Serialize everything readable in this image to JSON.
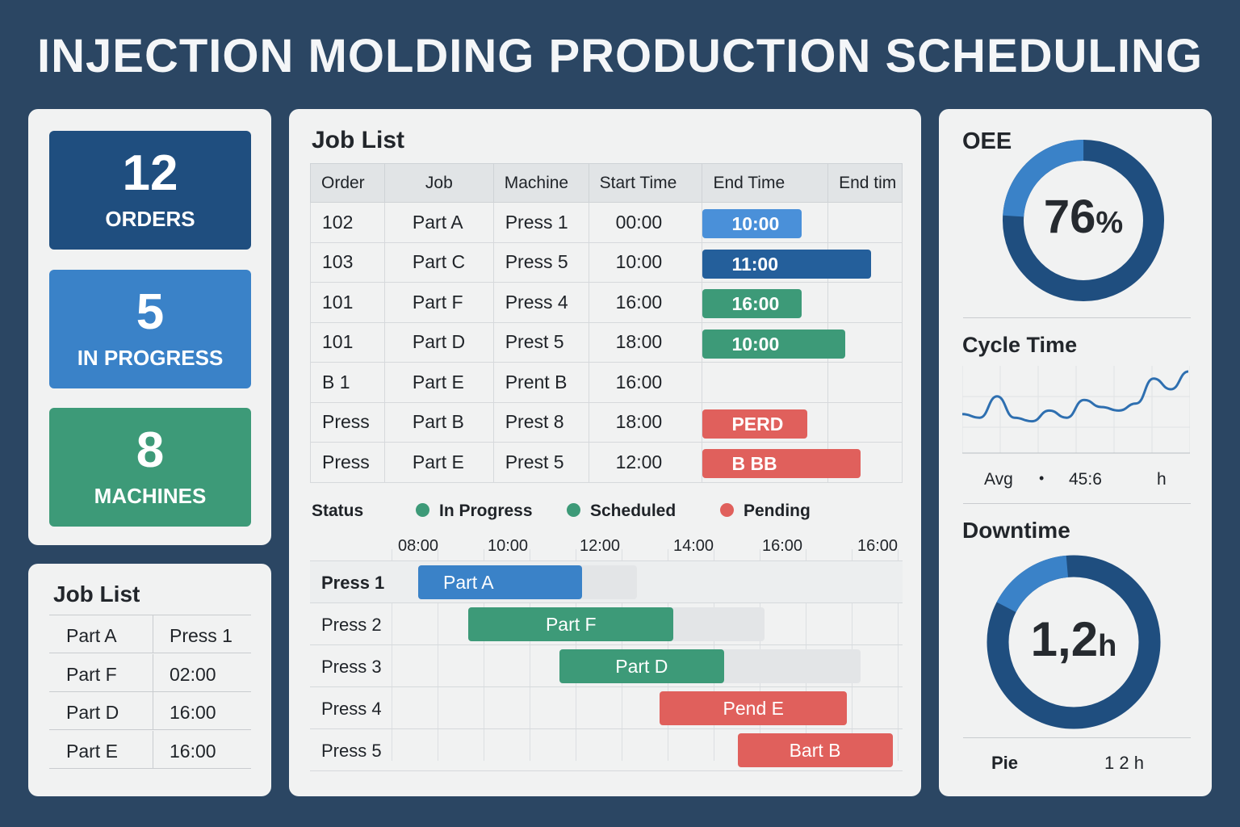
{
  "title": "INJECTION MOLDING PRODUCTION SCHEDULING",
  "colors": {
    "dark_blue": "#1f4e7f",
    "blue": "#3a82c8",
    "light_blue": "#4a90d9",
    "green": "#3d9a78",
    "red": "#e0605c",
    "ghost": "#e3e5e7"
  },
  "stats": [
    {
      "value": "12",
      "label": "ORDERS"
    },
    {
      "value": "5",
      "label": "IN PROGRESS"
    },
    {
      "value": "8",
      "label": "MACHINES"
    }
  ],
  "mini_job_list": {
    "title": "Job List",
    "rows": [
      [
        "Part A",
        "Press 1"
      ],
      [
        "Part F",
        "02:00"
      ],
      [
        "Part D",
        "16:00"
      ],
      [
        "Part E",
        "16:00"
      ]
    ]
  },
  "job_list": {
    "title": "Job List",
    "headers": [
      "Order",
      "Job",
      "Machine",
      "Start Time",
      "End Time",
      "End tim"
    ],
    "rows": [
      {
        "order": "102",
        "job": "Part A",
        "machine": "Press 1",
        "start": "00:00",
        "end": "10:00",
        "end_color": "#4a90d9",
        "end_fill": 0.5
      },
      {
        "order": "103",
        "job": "Part C",
        "machine": "Press 5",
        "start": "10:00",
        "end": "11:00",
        "end_color": "#245f9b",
        "end_fill": 0.85
      },
      {
        "order": "101",
        "job": "Part F",
        "machine": "Press 4",
        "start": "16:00",
        "end": "16:00",
        "end_color": "#3d9a78",
        "end_fill": 0.5
      },
      {
        "order": "101",
        "job": "Part D",
        "machine": "Prest 5",
        "start": "18:00",
        "end": "10:00",
        "end_color": "#3d9a78",
        "end_fill": 0.72
      },
      {
        "order": "B 1",
        "job": "Part E",
        "machine": "Prent B",
        "start": "16:00",
        "end": "",
        "end_color": "",
        "end_fill": 0
      },
      {
        "order": "Press",
        "job": "Part B",
        "machine": "Prest 8",
        "start": "18:00",
        "end": "PERD",
        "end_color": "#e0605c",
        "end_fill": 0.53
      },
      {
        "order": "Press",
        "job": "Part E",
        "machine": "Prest 5",
        "start": "12:00",
        "end": "B  BB",
        "end_color": "#e0605c",
        "end_fill": 0.8
      }
    ]
  },
  "status_legend": {
    "title": "Status",
    "items": [
      {
        "label": "In Progress",
        "color": "#3d9a78"
      },
      {
        "label": "Scheduled",
        "color": "#3d9a78"
      },
      {
        "label": "Pending",
        "color": "#e0605c"
      }
    ]
  },
  "gantt": {
    "ticks": [
      "08:00",
      "10:00",
      "12:00",
      "14:00",
      "16:00",
      "16:00"
    ],
    "rows": [
      {
        "machine": "Press 1",
        "bold": true,
        "label": "Part A",
        "start": 8.0,
        "end": 11.6,
        "ghost_end": 12.8,
        "color": "#3a82c8"
      },
      {
        "machine": "Press 2",
        "label": "Part F",
        "start": 9.1,
        "end": 13.6,
        "ghost_end": 15.6,
        "color": "#3d9a78"
      },
      {
        "machine": "Press 3",
        "label": "Part D",
        "start": 11.1,
        "end": 14.7,
        "ghost_end": 17.7,
        "color": "#3d9a78"
      },
      {
        "machine": "Press 4",
        "label": "Pend E",
        "start": 13.3,
        "end": 17.4,
        "ghost_end": null,
        "color": "#e0605c"
      },
      {
        "machine": "Press 5",
        "label": "Bart B",
        "start": 15.0,
        "end": 18.4,
        "ghost_end": null,
        "color": "#e0605c"
      }
    ]
  },
  "oee": {
    "title": "OEE",
    "value": "76",
    "unit": "%",
    "fraction": 0.76
  },
  "cycle_time": {
    "title": "Cycle Time",
    "series": [
      0.4,
      0.35,
      0.65,
      0.35,
      0.3,
      0.45,
      0.35,
      0.6,
      0.5,
      0.45,
      0.55,
      0.9,
      0.75,
      1.0
    ],
    "avg_label": "Avg",
    "bullet": "•",
    "avg_value": "45:6",
    "unit": "h"
  },
  "downtime": {
    "title": "Downtime",
    "value": "1,2",
    "unit": "h",
    "fraction": 0.84,
    "footer_label": "Pie",
    "footer_value": "1 2 h"
  }
}
